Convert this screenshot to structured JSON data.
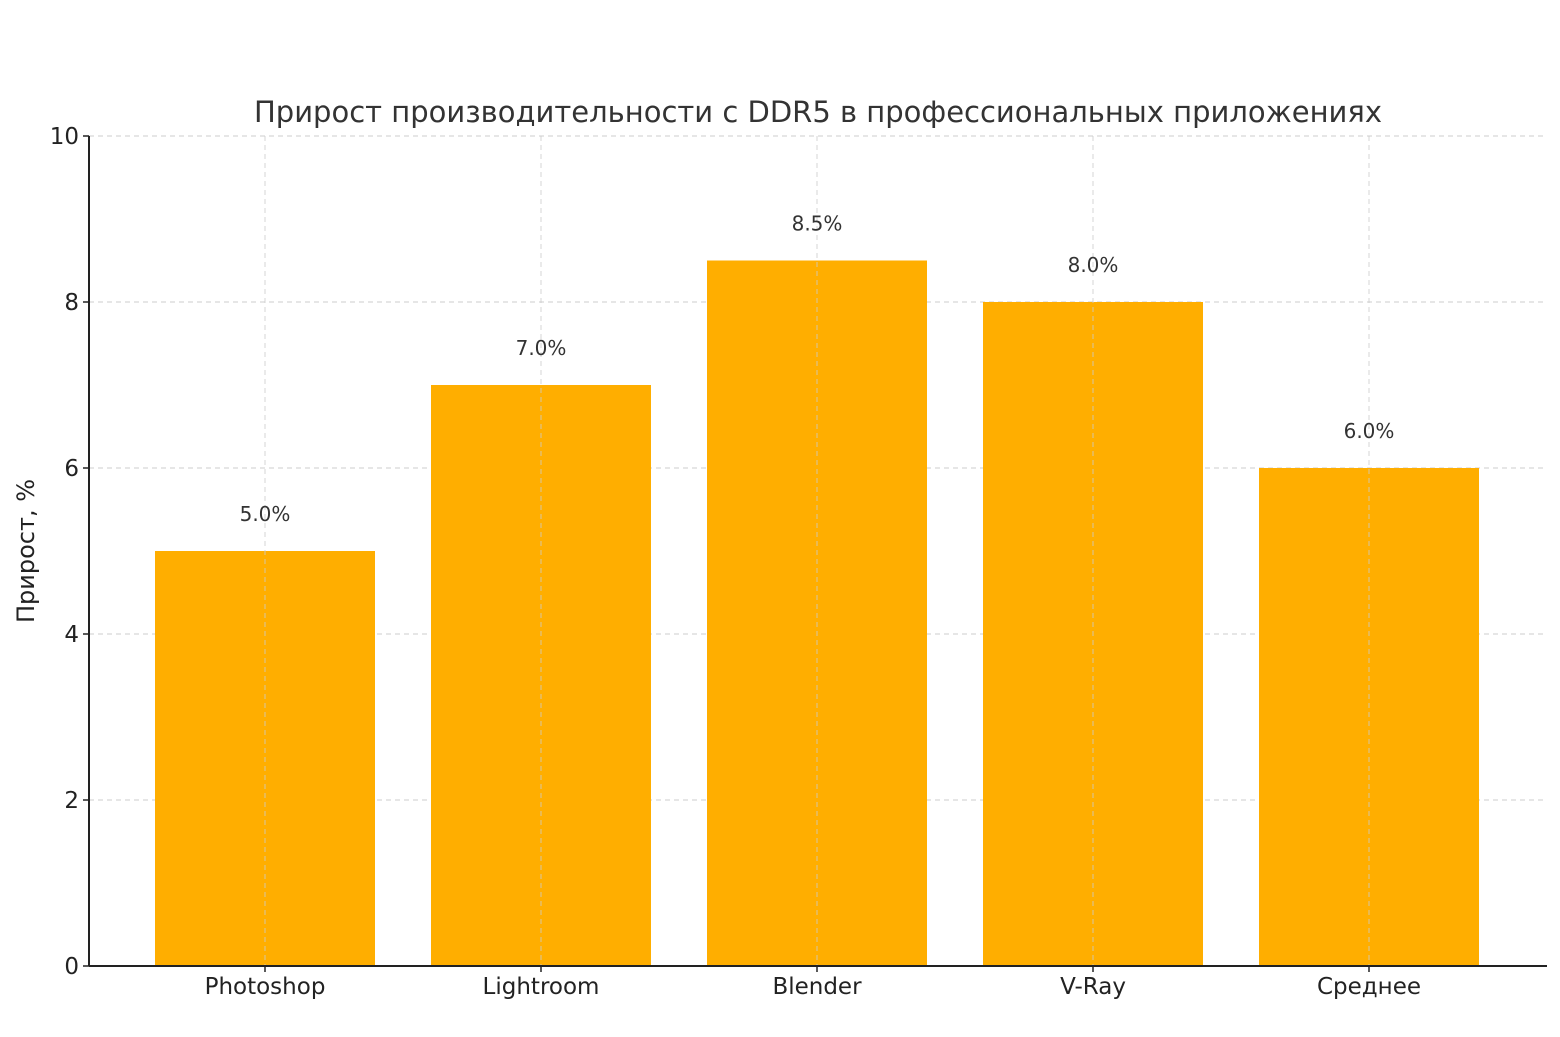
{
  "chart_data": {
    "type": "bar",
    "title": "Прирост производительности с DDR5 в профессиональных приложениях",
    "xlabel": "",
    "ylabel": "Прирост, %",
    "categories": [
      "Photoshop",
      "Lightroom",
      "Blender",
      "V-Ray",
      "Среднее"
    ],
    "values": [
      5.0,
      7.0,
      8.5,
      8.0,
      6.0
    ],
    "data_labels": [
      "5.0%",
      "7.0%",
      "8.5%",
      "8.0%",
      "6.0%"
    ],
    "ylim": [
      0,
      10
    ],
    "yticks": [
      0,
      2,
      4,
      6,
      8,
      10
    ],
    "grid": true,
    "grid_style": "dashed",
    "bar_color": "#FFAE00"
  }
}
